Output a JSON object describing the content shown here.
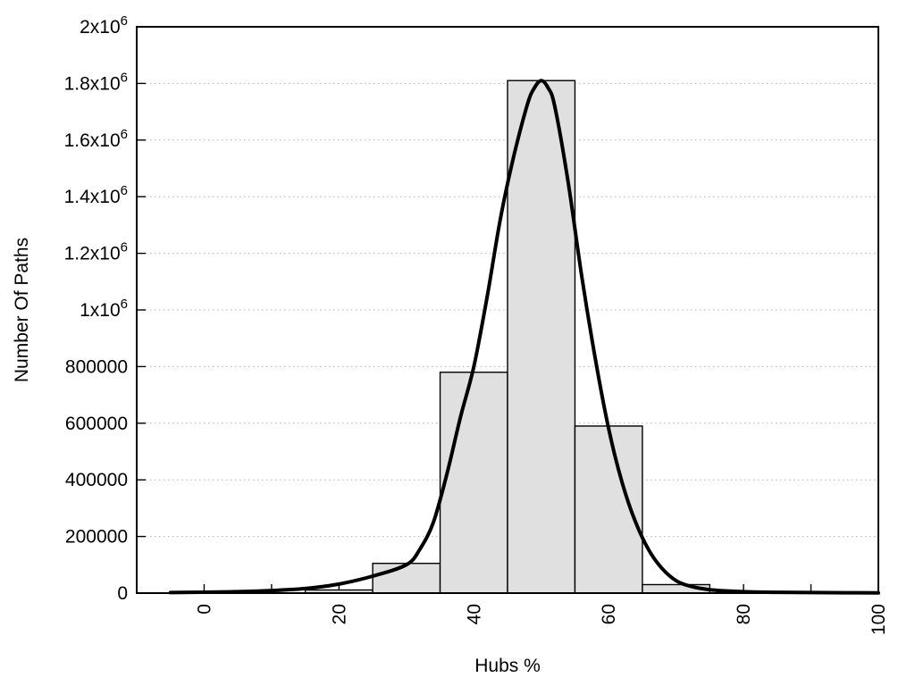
{
  "figure": {
    "background": "#ffffff"
  },
  "chart_data": {
    "type": "bar",
    "subtype": "histogram_with_fit_curve",
    "title": "",
    "xlabel": "Hubs %",
    "ylabel": "Number Of Paths",
    "xlim": [
      -10,
      100
    ],
    "ylim": [
      0,
      2000000
    ],
    "grid": "horizontal dotted gridlines at each y tick",
    "legend": "none",
    "x_ticks": {
      "positions": [
        0,
        10,
        20,
        30,
        40,
        50,
        60,
        70,
        80,
        90,
        100
      ],
      "labeled_positions": [
        0,
        20,
        40,
        60,
        80,
        100
      ],
      "labels": [
        "0",
        "20",
        "40",
        "60",
        "80",
        "100"
      ],
      "label_rotation_deg": -90
    },
    "y_ticks": {
      "positions": [
        0,
        200000,
        400000,
        600000,
        800000,
        1000000,
        1200000,
        1400000,
        1600000,
        1800000,
        2000000
      ],
      "labels": [
        "0",
        "200000",
        "400000",
        "600000",
        "800000",
        "1x10^6",
        "1.2x10^6",
        "1.4x10^6",
        "1.6x10^6",
        "1.8x10^6",
        "2x10^6"
      ]
    },
    "bars": {
      "bin_width": 10,
      "centers": [
        20,
        30,
        40,
        50,
        60,
        70
      ],
      "values": [
        11000,
        105000,
        780000,
        1810000,
        590000,
        30000
      ],
      "fill": "#e0e0e0",
      "stroke": "#000000"
    },
    "fit_curve": {
      "color": "#000000",
      "stroke_width": 4,
      "points": [
        [
          -5,
          2000
        ],
        [
          0,
          3000
        ],
        [
          5,
          5000
        ],
        [
          10,
          9000
        ],
        [
          15,
          16000
        ],
        [
          20,
          32000
        ],
        [
          25,
          60000
        ],
        [
          30,
          100000
        ],
        [
          32,
          155000
        ],
        [
          34,
          250000
        ],
        [
          36,
          420000
        ],
        [
          38,
          620000
        ],
        [
          40,
          800000
        ],
        [
          42,
          1050000
        ],
        [
          44,
          1330000
        ],
        [
          46,
          1550000
        ],
        [
          48,
          1730000
        ],
        [
          49,
          1785000
        ],
        [
          50,
          1810000
        ],
        [
          51,
          1785000
        ],
        [
          52,
          1720000
        ],
        [
          54,
          1450000
        ],
        [
          56,
          1120000
        ],
        [
          58,
          830000
        ],
        [
          60,
          580000
        ],
        [
          62,
          390000
        ],
        [
          64,
          250000
        ],
        [
          66,
          150000
        ],
        [
          68,
          85000
        ],
        [
          70,
          44000
        ],
        [
          72,
          25000
        ],
        [
          75,
          12000
        ],
        [
          80,
          5000
        ],
        [
          85,
          2800
        ],
        [
          90,
          1800
        ],
        [
          95,
          1200
        ],
        [
          100,
          900
        ]
      ]
    },
    "style": {
      "border_color": "#000000",
      "border_width": 2,
      "tick_color": "#000000",
      "tick_length": 10,
      "grid_color": "#b3b3b3",
      "tick_font_size": 21,
      "superscript_font_size": 15
    },
    "layout": {
      "plot_left": 153,
      "plot_top": 30,
      "plot_right": 983,
      "plot_bottom": 664
    }
  }
}
